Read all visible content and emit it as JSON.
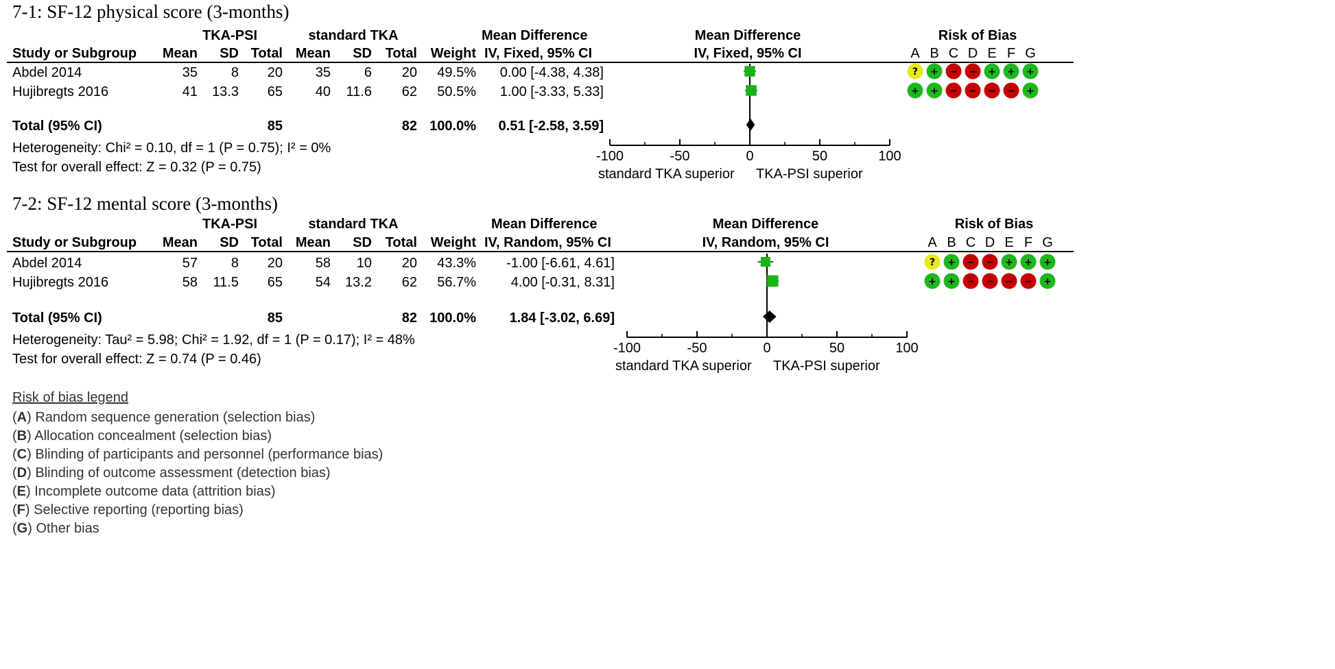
{
  "legend": {
    "title": "Risk of bias legend",
    "items": [
      {
        "letter": "A",
        "text": " Random sequence generation (selection bias)"
      },
      {
        "letter": "B",
        "text": " Allocation concealment (selection bias)"
      },
      {
        "letter": "C",
        "text": " Blinding of participants and personnel (performance bias)"
      },
      {
        "letter": "D",
        "text": " Blinding of outcome assessment (detection bias)"
      },
      {
        "letter": "E",
        "text": " Incomplete outcome data (attrition bias)"
      },
      {
        "letter": "F",
        "text": " Selective reporting (reporting bias)"
      },
      {
        "letter": "G",
        "text": " Other bias"
      }
    ]
  },
  "colors": {
    "low": "#1fb71f",
    "high": "#c40000",
    "unclear": "#e8e81a",
    "square": "#19b319"
  },
  "chart_data": [
    {
      "type": "forest",
      "title": "7-1: SF-12 physical score (3-months)",
      "group1": "TKA-PSI",
      "group2": "standard TKA",
      "headers": {
        "study": "Study or Subgroup",
        "mean": "Mean",
        "sd": "SD",
        "total": "Total",
        "weight": "Weight",
        "md": "Mean Difference",
        "md_method": "IV, Fixed, 95% CI",
        "plot": "Mean Difference",
        "plot_method": "IV, Fixed, 95% CI",
        "rob": "Risk of Bias"
      },
      "rob_columns": [
        "A",
        "B",
        "C",
        "D",
        "E",
        "F",
        "G"
      ],
      "studies": [
        {
          "name": "Abdel 2014",
          "mean1": "35",
          "sd1": "8",
          "n1": "20",
          "mean2": "35",
          "sd2": "6",
          "n2": "20",
          "weight": "49.5%",
          "ci_text": "0.00 [-4.38, 4.38]",
          "md": 0.0,
          "lo": -4.38,
          "hi": 4.38,
          "w": 49.5,
          "rob": [
            "unclear",
            "low",
            "high",
            "high",
            "low",
            "low",
            "low"
          ]
        },
        {
          "name": "Hujibregts 2016",
          "mean1": "41",
          "sd1": "13.3",
          "n1": "65",
          "mean2": "40",
          "sd2": "11.6",
          "n2": "62",
          "weight": "50.5%",
          "ci_text": "1.00 [-3.33, 5.33]",
          "md": 1.0,
          "lo": -3.33,
          "hi": 5.33,
          "w": 50.5,
          "rob": [
            "low",
            "low",
            "high",
            "high",
            "high",
            "high",
            "low"
          ]
        }
      ],
      "total": {
        "label": "Total (95% CI)",
        "n1": "85",
        "n2": "82",
        "weight": "100.0%",
        "ci_text": "0.51 [-2.58, 3.59]",
        "md": 0.51,
        "lo": -2.58,
        "hi": 3.59
      },
      "heterogeneity": "Heterogeneity: Chi² = 0.10, df = 1 (P = 0.75); I² = 0%",
      "overall": "Test for overall effect: Z = 0.32 (P = 0.75)",
      "axis": {
        "min": -100,
        "max": 100,
        "ticks": [
          "-100",
          "-50",
          "0",
          "50",
          "100"
        ],
        "left_label": "standard TKA superior",
        "right_label": "TKA-PSI superior"
      }
    },
    {
      "type": "forest",
      "title": "7-2: SF-12 mental score (3-months)",
      "group1": "TKA-PSI",
      "group2": "standard TKA",
      "headers": {
        "study": "Study or Subgroup",
        "mean": "Mean",
        "sd": "SD",
        "total": "Total",
        "weight": "Weight",
        "md": "Mean Difference",
        "md_method": "IV, Random, 95% CI",
        "plot": "Mean Difference",
        "plot_method": "IV, Random, 95% CI",
        "rob": "Risk of Bias"
      },
      "rob_columns": [
        "A",
        "B",
        "C",
        "D",
        "E",
        "F",
        "G"
      ],
      "studies": [
        {
          "name": "Abdel 2014",
          "mean1": "57",
          "sd1": "8",
          "n1": "20",
          "mean2": "58",
          "sd2": "10",
          "n2": "20",
          "weight": "43.3%",
          "ci_text": "-1.00 [-6.61, 4.61]",
          "md": -1.0,
          "lo": -6.61,
          "hi": 4.61,
          "w": 43.3,
          "rob": [
            "unclear",
            "low",
            "high",
            "high",
            "low",
            "low",
            "low"
          ]
        },
        {
          "name": "Hujibregts 2016",
          "mean1": "58",
          "sd1": "11.5",
          "n1": "65",
          "mean2": "54",
          "sd2": "13.2",
          "n2": "62",
          "weight": "56.7%",
          "ci_text": "4.00 [-0.31, 8.31]",
          "md": 4.0,
          "lo": -0.31,
          "hi": 8.31,
          "w": 56.7,
          "rob": [
            "low",
            "low",
            "high",
            "high",
            "high",
            "high",
            "low"
          ]
        }
      ],
      "total": {
        "label": "Total (95% CI)",
        "n1": "85",
        "n2": "82",
        "weight": "100.0%",
        "ci_text": "1.84 [-3.02, 6.69]",
        "md": 1.84,
        "lo": -3.02,
        "hi": 6.69
      },
      "heterogeneity": "Heterogeneity: Tau² = 5.98; Chi² = 1.92, df = 1 (P = 0.17); I² = 48%",
      "overall": "Test for overall effect: Z = 0.74 (P = 0.46)",
      "axis": {
        "min": -100,
        "max": 100,
        "ticks": [
          "-100",
          "-50",
          "0",
          "50",
          "100"
        ],
        "left_label": "standard TKA superior",
        "right_label": "TKA-PSI superior"
      }
    }
  ]
}
